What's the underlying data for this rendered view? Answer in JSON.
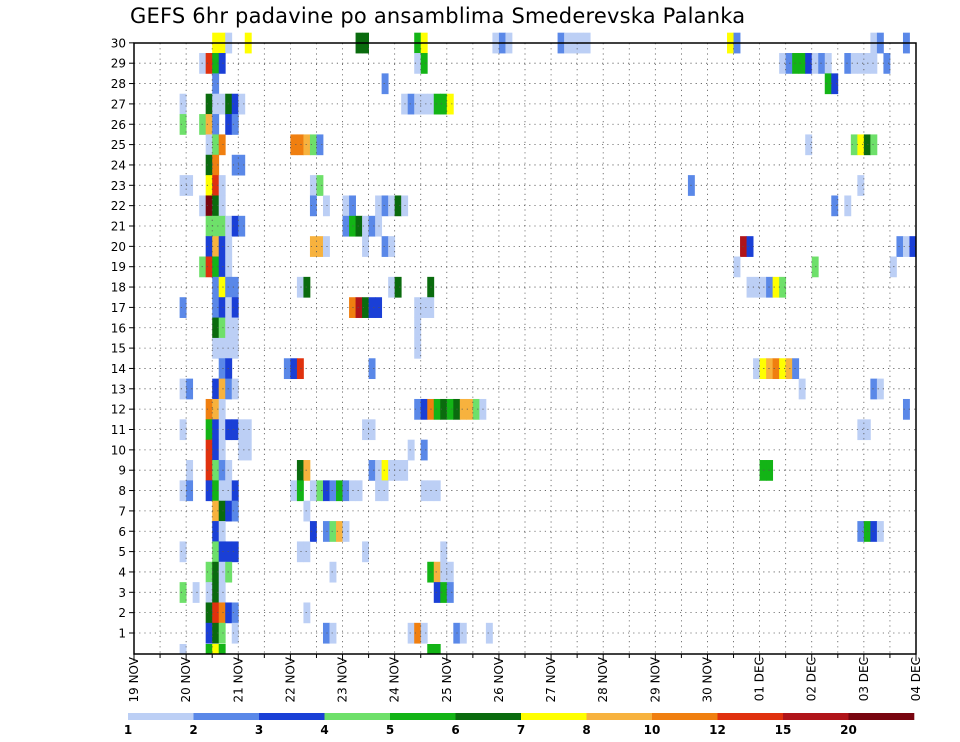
{
  "chart_data": {
    "type": "heatmap",
    "title": "GEFS 6hr padavine po ansamblima Smederevska Palanka",
    "y_tick_labels": [
      "1",
      "2",
      "3",
      "4",
      "5",
      "6",
      "7",
      "8",
      "9",
      "10",
      "11",
      "12",
      "13",
      "14",
      "15",
      "16",
      "17",
      "18",
      "19",
      "20",
      "21",
      "22",
      "23",
      "24",
      "25",
      "26",
      "27",
      "28",
      "29",
      "30"
    ],
    "x_tick_labels": [
      "19 NOV",
      "20 NOV",
      "21 NOV",
      "22 NOV",
      "23 NOV",
      "24 NOV",
      "25 NOV",
      "26 NOV",
      "27 NOV",
      "28 NOV",
      "29 NOV",
      "30 NOV",
      "01 DEC",
      "02 DEC",
      "03 DEC",
      "04 DEC"
    ],
    "steps_per_day": 4,
    "grid": "dotted",
    "legend": {
      "placement": "bottom",
      "colors": [
        "#bccff5",
        "#5a88e8",
        "#1a3fd6",
        "#6ee06a",
        "#13b416",
        "#0a6b0e",
        "#ffff00",
        "#f7b23e",
        "#f07f10",
        "#e0310e",
        "#b0141a",
        "#780510"
      ],
      "labels": [
        "1",
        "2",
        "3",
        "4",
        "5",
        "6",
        "7",
        "8",
        "10",
        "12",
        "15",
        "20"
      ]
    },
    "cells_note": "each cell: member, 6-hour step index from 19 NOV 00 UTC, precipitation in mm",
    "cells": [
      [
        30,
        12,
        7
      ],
      [
        30,
        13,
        7
      ],
      [
        30,
        14,
        1
      ],
      [
        30,
        17,
        7
      ],
      [
        30,
        34,
        6
      ],
      [
        30,
        35,
        6
      ],
      [
        30,
        43,
        5
      ],
      [
        30,
        44,
        7
      ],
      [
        30,
        55,
        1
      ],
      [
        30,
        56,
        2
      ],
      [
        30,
        57,
        1
      ],
      [
        30,
        65,
        2
      ],
      [
        30,
        66,
        1
      ],
      [
        30,
        67,
        1
      ],
      [
        30,
        68,
        1
      ],
      [
        30,
        69,
        1
      ],
      [
        30,
        91,
        7
      ],
      [
        30,
        92,
        2
      ],
      [
        30,
        113,
        1
      ],
      [
        30,
        114,
        2
      ],
      [
        30,
        118,
        2
      ],
      [
        29,
        10,
        1
      ],
      [
        29,
        11,
        12
      ],
      [
        29,
        12,
        5
      ],
      [
        29,
        13,
        3
      ],
      [
        29,
        43,
        1
      ],
      [
        29,
        44,
        5
      ],
      [
        29,
        99,
        1
      ],
      [
        29,
        100,
        2
      ],
      [
        29,
        101,
        5
      ],
      [
        29,
        102,
        5
      ],
      [
        29,
        103,
        3
      ],
      [
        29,
        104,
        1
      ],
      [
        29,
        105,
        2
      ],
      [
        29,
        106,
        1
      ],
      [
        29,
        109,
        2
      ],
      [
        29,
        110,
        1
      ],
      [
        29,
        111,
        1
      ],
      [
        29,
        112,
        1
      ],
      [
        29,
        113,
        1
      ],
      [
        29,
        115,
        2
      ],
      [
        28,
        12,
        2
      ],
      [
        28,
        38,
        2
      ],
      [
        28,
        106,
        5
      ],
      [
        28,
        107,
        3
      ],
      [
        27,
        7,
        1
      ],
      [
        27,
        11,
        6
      ],
      [
        27,
        12,
        1
      ],
      [
        27,
        13,
        1
      ],
      [
        27,
        14,
        6
      ],
      [
        27,
        15,
        3
      ],
      [
        27,
        16,
        1
      ],
      [
        27,
        41,
        1
      ],
      [
        27,
        42,
        2
      ],
      [
        27,
        43,
        1
      ],
      [
        27,
        44,
        1
      ],
      [
        27,
        45,
        1
      ],
      [
        27,
        46,
        5
      ],
      [
        27,
        47,
        5
      ],
      [
        27,
        48,
        7
      ],
      [
        26,
        7,
        4
      ],
      [
        26,
        10,
        4
      ],
      [
        26,
        11,
        8
      ],
      [
        26,
        12,
        2
      ],
      [
        26,
        14,
        3
      ],
      [
        26,
        15,
        2
      ],
      [
        25,
        11,
        1
      ],
      [
        25,
        12,
        4
      ],
      [
        25,
        13,
        10
      ],
      [
        25,
        24,
        10
      ],
      [
        25,
        25,
        10
      ],
      [
        25,
        26,
        8
      ],
      [
        25,
        27,
        4
      ],
      [
        25,
        28,
        2
      ],
      [
        25,
        103,
        1
      ],
      [
        25,
        110,
        4
      ],
      [
        25,
        111,
        7
      ],
      [
        25,
        112,
        6
      ],
      [
        25,
        113,
        4
      ],
      [
        24,
        11,
        6
      ],
      [
        24,
        12,
        10
      ],
      [
        24,
        15,
        2
      ],
      [
        24,
        16,
        2
      ],
      [
        23,
        7,
        1
      ],
      [
        23,
        8,
        1
      ],
      [
        23,
        11,
        7
      ],
      [
        23,
        12,
        12
      ],
      [
        23,
        13,
        1
      ],
      [
        23,
        27,
        1
      ],
      [
        23,
        28,
        4
      ],
      [
        23,
        85,
        2
      ],
      [
        23,
        111,
        1
      ],
      [
        22,
        10,
        1
      ],
      [
        22,
        11,
        20
      ],
      [
        22,
        12,
        6
      ],
      [
        22,
        13,
        1
      ],
      [
        22,
        27,
        2
      ],
      [
        22,
        29,
        1
      ],
      [
        22,
        32,
        1
      ],
      [
        22,
        33,
        2
      ],
      [
        22,
        37,
        1
      ],
      [
        22,
        38,
        2
      ],
      [
        22,
        39,
        1
      ],
      [
        22,
        40,
        6
      ],
      [
        22,
        41,
        1
      ],
      [
        22,
        107,
        2
      ],
      [
        22,
        109,
        1
      ],
      [
        21,
        11,
        4
      ],
      [
        21,
        12,
        4
      ],
      [
        21,
        13,
        4
      ],
      [
        21,
        14,
        1
      ],
      [
        21,
        15,
        3
      ],
      [
        21,
        16,
        2
      ],
      [
        21,
        32,
        2
      ],
      [
        21,
        33,
        5
      ],
      [
        21,
        34,
        6
      ],
      [
        21,
        35,
        1
      ],
      [
        21,
        36,
        2
      ],
      [
        21,
        37,
        1
      ],
      [
        20,
        11,
        3
      ],
      [
        20,
        12,
        8
      ],
      [
        20,
        13,
        3
      ],
      [
        20,
        14,
        1
      ],
      [
        20,
        27,
        8
      ],
      [
        20,
        28,
        8
      ],
      [
        20,
        29,
        1
      ],
      [
        20,
        35,
        1
      ],
      [
        20,
        38,
        2
      ],
      [
        20,
        39,
        1
      ],
      [
        20,
        93,
        15
      ],
      [
        20,
        94,
        3
      ],
      [
        20,
        117,
        2
      ],
      [
        20,
        118,
        1
      ],
      [
        20,
        119,
        3
      ],
      [
        19,
        10,
        4
      ],
      [
        19,
        11,
        12
      ],
      [
        19,
        12,
        5
      ],
      [
        19,
        13,
        3
      ],
      [
        19,
        14,
        1
      ],
      [
        19,
        92,
        1
      ],
      [
        19,
        104,
        4
      ],
      [
        19,
        116,
        1
      ],
      [
        18,
        12,
        2
      ],
      [
        18,
        13,
        7
      ],
      [
        18,
        14,
        2
      ],
      [
        18,
        15,
        2
      ],
      [
        18,
        25,
        1
      ],
      [
        18,
        26,
        6
      ],
      [
        18,
        39,
        1
      ],
      [
        18,
        40,
        6
      ],
      [
        18,
        45,
        6
      ],
      [
        18,
        94,
        1
      ],
      [
        18,
        95,
        1
      ],
      [
        18,
        96,
        1
      ],
      [
        18,
        97,
        2
      ],
      [
        18,
        98,
        7
      ],
      [
        18,
        99,
        4
      ],
      [
        17,
        7,
        2
      ],
      [
        17,
        12,
        2
      ],
      [
        17,
        13,
        3
      ],
      [
        17,
        14,
        1
      ],
      [
        17,
        15,
        3
      ],
      [
        17,
        33,
        10
      ],
      [
        17,
        34,
        15
      ],
      [
        17,
        35,
        6
      ],
      [
        17,
        36,
        3
      ],
      [
        17,
        37,
        3
      ],
      [
        17,
        43,
        1
      ],
      [
        17,
        44,
        1
      ],
      [
        17,
        45,
        1
      ],
      [
        16,
        12,
        6
      ],
      [
        16,
        13,
        4
      ],
      [
        16,
        14,
        1
      ],
      [
        16,
        15,
        1
      ],
      [
        16,
        43,
        1
      ],
      [
        15,
        12,
        1
      ],
      [
        15,
        13,
        1
      ],
      [
        15,
        14,
        1
      ],
      [
        15,
        15,
        1
      ],
      [
        15,
        43,
        1
      ],
      [
        14,
        13,
        2
      ],
      [
        14,
        14,
        3
      ],
      [
        14,
        23,
        2
      ],
      [
        14,
        24,
        3
      ],
      [
        14,
        25,
        12
      ],
      [
        14,
        36,
        2
      ],
      [
        14,
        95,
        1
      ],
      [
        14,
        96,
        7
      ],
      [
        14,
        97,
        8
      ],
      [
        14,
        98,
        10
      ],
      [
        14,
        99,
        7
      ],
      [
        14,
        100,
        8
      ],
      [
        14,
        101,
        2
      ],
      [
        13,
        7,
        1
      ],
      [
        13,
        8,
        2
      ],
      [
        13,
        12,
        3
      ],
      [
        13,
        13,
        8
      ],
      [
        13,
        14,
        2
      ],
      [
        13,
        15,
        1
      ],
      [
        13,
        102,
        1
      ],
      [
        13,
        113,
        2
      ],
      [
        13,
        114,
        1
      ],
      [
        12,
        11,
        10
      ],
      [
        12,
        12,
        8
      ],
      [
        12,
        13,
        1
      ],
      [
        12,
        43,
        2
      ],
      [
        12,
        44,
        3
      ],
      [
        12,
        45,
        10
      ],
      [
        12,
        46,
        5
      ],
      [
        12,
        47,
        6
      ],
      [
        12,
        48,
        5
      ],
      [
        12,
        49,
        6
      ],
      [
        12,
        50,
        8
      ],
      [
        12,
        51,
        8
      ],
      [
        12,
        52,
        4
      ],
      [
        12,
        53,
        1
      ],
      [
        12,
        118,
        2
      ],
      [
        11,
        7,
        1
      ],
      [
        11,
        11,
        5
      ],
      [
        11,
        12,
        3
      ],
      [
        11,
        13,
        1
      ],
      [
        11,
        14,
        3
      ],
      [
        11,
        15,
        3
      ],
      [
        11,
        16,
        1
      ],
      [
        11,
        17,
        1
      ],
      [
        11,
        35,
        1
      ],
      [
        11,
        36,
        1
      ],
      [
        11,
        111,
        1
      ],
      [
        11,
        112,
        1
      ],
      [
        10,
        11,
        12
      ],
      [
        10,
        12,
        3
      ],
      [
        10,
        13,
        1
      ],
      [
        10,
        16,
        1
      ],
      [
        10,
        17,
        1
      ],
      [
        10,
        42,
        1
      ],
      [
        10,
        44,
        2
      ],
      [
        9,
        8,
        1
      ],
      [
        9,
        11,
        12
      ],
      [
        9,
        12,
        4
      ],
      [
        9,
        13,
        2
      ],
      [
        9,
        14,
        1
      ],
      [
        9,
        25,
        6
      ],
      [
        9,
        26,
        8
      ],
      [
        9,
        36,
        2
      ],
      [
        9,
        37,
        1
      ],
      [
        9,
        38,
        7
      ],
      [
        9,
        39,
        1
      ],
      [
        9,
        40,
        1
      ],
      [
        9,
        41,
        1
      ],
      [
        9,
        96,
        5
      ],
      [
        9,
        97,
        5
      ],
      [
        8,
        7,
        1
      ],
      [
        8,
        8,
        2
      ],
      [
        8,
        11,
        3
      ],
      [
        8,
        12,
        5
      ],
      [
        8,
        13,
        1
      ],
      [
        8,
        14,
        1
      ],
      [
        8,
        15,
        3
      ],
      [
        8,
        24,
        1
      ],
      [
        8,
        25,
        5
      ],
      [
        8,
        27,
        1
      ],
      [
        8,
        28,
        4
      ],
      [
        8,
        29,
        3
      ],
      [
        8,
        30,
        2
      ],
      [
        8,
        31,
        5
      ],
      [
        8,
        32,
        2
      ],
      [
        8,
        33,
        1
      ],
      [
        8,
        34,
        1
      ],
      [
        8,
        37,
        1
      ],
      [
        8,
        38,
        1
      ],
      [
        8,
        44,
        1
      ],
      [
        8,
        45,
        1
      ],
      [
        8,
        46,
        1
      ],
      [
        7,
        12,
        8
      ],
      [
        7,
        13,
        6
      ],
      [
        7,
        14,
        3
      ],
      [
        7,
        15,
        2
      ],
      [
        7,
        26,
        1
      ],
      [
        6,
        12,
        3
      ],
      [
        6,
        13,
        1
      ],
      [
        6,
        27,
        3
      ],
      [
        6,
        29,
        2
      ],
      [
        6,
        30,
        4
      ],
      [
        6,
        31,
        8
      ],
      [
        6,
        32,
        1
      ],
      [
        6,
        111,
        2
      ],
      [
        6,
        112,
        5
      ],
      [
        6,
        113,
        3
      ],
      [
        6,
        114,
        1
      ],
      [
        5,
        7,
        1
      ],
      [
        5,
        12,
        4
      ],
      [
        5,
        13,
        3
      ],
      [
        5,
        14,
        3
      ],
      [
        5,
        15,
        3
      ],
      [
        5,
        25,
        1
      ],
      [
        5,
        26,
        1
      ],
      [
        5,
        35,
        1
      ],
      [
        5,
        47,
        1
      ],
      [
        4,
        11,
        4
      ],
      [
        4,
        12,
        6
      ],
      [
        4,
        13,
        1
      ],
      [
        4,
        14,
        4
      ],
      [
        4,
        30,
        1
      ],
      [
        4,
        45,
        5
      ],
      [
        4,
        46,
        8
      ],
      [
        4,
        47,
        1
      ],
      [
        4,
        48,
        1
      ],
      [
        3,
        7,
        4
      ],
      [
        3,
        9,
        1
      ],
      [
        3,
        11,
        1
      ],
      [
        3,
        12,
        6
      ],
      [
        3,
        13,
        1
      ],
      [
        3,
        46,
        3
      ],
      [
        3,
        47,
        5
      ],
      [
        3,
        48,
        2
      ],
      [
        2,
        11,
        6
      ],
      [
        2,
        12,
        12
      ],
      [
        2,
        13,
        10
      ],
      [
        2,
        14,
        3
      ],
      [
        2,
        15,
        2
      ],
      [
        2,
        26,
        1
      ],
      [
        1,
        11,
        3
      ],
      [
        1,
        12,
        6
      ],
      [
        1,
        13,
        4
      ],
      [
        1,
        15,
        1
      ],
      [
        1,
        29,
        2
      ],
      [
        1,
        30,
        1
      ],
      [
        1,
        42,
        1
      ],
      [
        1,
        43,
        10
      ],
      [
        1,
        44,
        1
      ],
      [
        1,
        49,
        2
      ],
      [
        1,
        50,
        1
      ],
      [
        1,
        54,
        1
      ]
    ],
    "bottom_row_cells": [
      [
        7,
        1
      ],
      [
        11,
        5
      ],
      [
        12,
        7
      ],
      [
        13,
        5
      ],
      [
        45,
        5
      ],
      [
        46,
        5
      ]
    ]
  }
}
